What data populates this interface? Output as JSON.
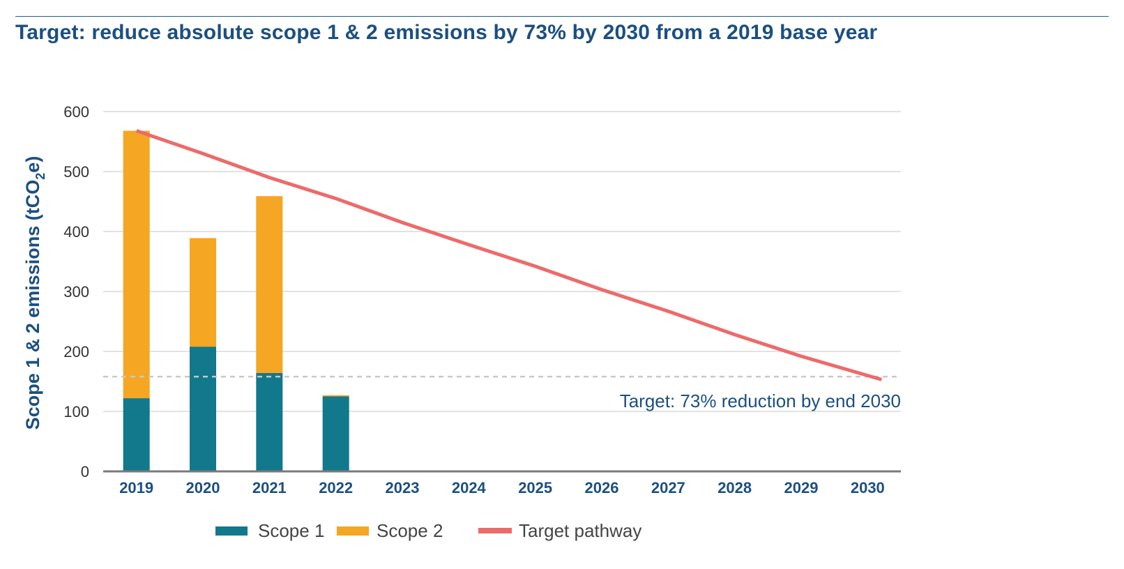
{
  "chart_data": {
    "type": "bar",
    "title": "Target: reduce absolute scope 1 & 2 emissions by 73% by 2030 from a 2019 base year",
    "ylabel_main": "Scope 1 & 2 emissions (tCO",
    "ylabel_sub": "2",
    "ylabel_end": "e)",
    "xlabel": "",
    "ylim": [
      0,
      600
    ],
    "yticks": [
      "0",
      "100",
      "200",
      "300",
      "400",
      "500",
      "600"
    ],
    "ytick_values": [
      0,
      100,
      200,
      300,
      400,
      500,
      600
    ],
    "categories": [
      "2019",
      "2020",
      "2021",
      "2022",
      "2023",
      "2024",
      "2025",
      "2026",
      "2027",
      "2028",
      "2029",
      "2030"
    ],
    "stacked": true,
    "series": [
      {
        "name": "Scope 1",
        "color": "#12788c",
        "values": [
          122,
          208,
          164,
          125,
          null,
          null,
          null,
          null,
          null,
          null,
          null,
          null
        ]
      },
      {
        "name": "Scope 2",
        "color": "#f5a623",
        "values": [
          446,
          181,
          295,
          2,
          null,
          null,
          null,
          null,
          null,
          null,
          null,
          null
        ]
      }
    ],
    "target_pathway": {
      "name": "Target pathway",
      "color": "#ec6b6a",
      "values": [
        568,
        530,
        490,
        455,
        415,
        378,
        342,
        303,
        267,
        228,
        192,
        153
      ]
    },
    "target_line": {
      "value": 158,
      "label": "Target: 73% reduction by end 2030",
      "color": "#c8c8c8"
    },
    "legend": [
      {
        "label": "Scope 1",
        "color": "#12788c",
        "kind": "bar"
      },
      {
        "label": "Scope 2",
        "color": "#f5a623",
        "kind": "bar"
      },
      {
        "label": "Target pathway",
        "color": "#ec6b6a",
        "kind": "line"
      }
    ],
    "legend_position": "bottom-center"
  }
}
